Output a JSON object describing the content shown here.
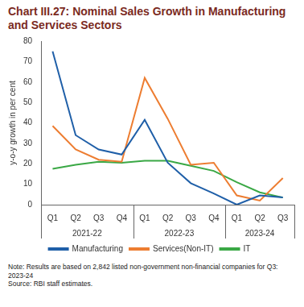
{
  "chart_data": {
    "type": "line",
    "title": "Chart III.27: Nominal Sales Growth in Manufacturing and Services Sectors",
    "y_label": "y-o-y growth in per cent",
    "categories": [
      "Q1",
      "Q2",
      "Q3",
      "Q4",
      "Q1",
      "Q2",
      "Q3",
      "Q4",
      "Q1",
      "Q2",
      "Q3"
    ],
    "category_groups": [
      {
        "label": "2021-22",
        "size": 4
      },
      {
        "label": "2022-23",
        "size": 4
      },
      {
        "label": "2023-24",
        "size": 3
      }
    ],
    "series": [
      {
        "name": "Manufacturing",
        "color": "#1f5fa8",
        "values": [
          75,
          34,
          27,
          24.5,
          41.5,
          20.5,
          10.5,
          5.5,
          0,
          4.5,
          3.5
        ]
      },
      {
        "name": "Services(Non-IT)",
        "color": "#ed7d31",
        "values": [
          38.5,
          27,
          22,
          21,
          62,
          42,
          19.5,
          20.5,
          4.5,
          2,
          13
        ]
      },
      {
        "name": "IT",
        "color": "#3aa845",
        "values": [
          17.5,
          19.5,
          21,
          20.5,
          21.5,
          21.5,
          19,
          16.5,
          11,
          6,
          3.5
        ]
      }
    ],
    "ylim": [
      0,
      80
    ],
    "yticks": [
      0,
      10,
      20,
      30,
      40,
      50,
      60,
      70,
      80
    ],
    "grid": false,
    "legend": "bottom",
    "note": "Note: Results are based on 2,842 listed non-government non-financial companies for Q3: 2023-24",
    "source": "Source: RBI staff estimates."
  }
}
